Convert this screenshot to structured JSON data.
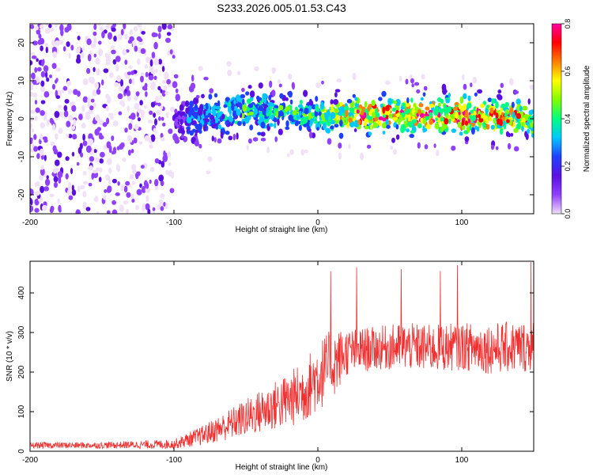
{
  "title": "S233.2026.005.01.53.C43",
  "colors": {
    "snr_line": "#f03030",
    "axis": "#000000"
  },
  "colormap": [
    "#f0e0f8",
    "#9040ff",
    "#5a10e0",
    "#2040ff",
    "#00c8ff",
    "#00ff80",
    "#80ff00",
    "#ffff00",
    "#ff8000",
    "#ff0000",
    "#ff00a0"
  ],
  "chart_data": [
    {
      "type": "heatmap",
      "name": "spectrogram",
      "xlabel": "Height of straight line (km)",
      "ylabel": "Frequency (Hz)",
      "xlim": [
        -200,
        150
      ],
      "ylim": [
        -25,
        25
      ],
      "xticks": [
        -200,
        -100,
        0,
        100
      ],
      "xtick_labels": [
        "-200",
        "-100",
        "0",
        "100"
      ],
      "yticks": [
        -20,
        -10,
        0,
        10,
        20
      ],
      "ytick_labels": [
        "-20",
        "-10",
        "0",
        "10",
        "20"
      ],
      "colorbar": {
        "label": "Normalized spectral amplitude",
        "range": [
          0,
          0.8
        ],
        "ticks": [
          0,
          0.2,
          0.4,
          0.6,
          0.8
        ],
        "tick_labels": [
          "0.0",
          "0.2",
          "0.4",
          "0.6",
          "0.8"
        ]
      },
      "description_points": [
        {
          "x": -200,
          "band_center": 0,
          "band_halfwidth": 25,
          "peak_amplitude": 0.12
        },
        {
          "x": -100,
          "band_center": 0,
          "band_halfwidth": 12,
          "peak_amplitude": 0.12
        },
        {
          "x": -90,
          "band_center": 0,
          "band_halfwidth": 8,
          "peak_amplitude": 0.25
        },
        {
          "x": -50,
          "band_center": 2,
          "band_halfwidth": 6,
          "peak_amplitude": 0.4
        },
        {
          "x": 0,
          "band_center": 1,
          "band_halfwidth": 5,
          "peak_amplitude": 0.45
        },
        {
          "x": 30,
          "band_center": 1,
          "band_halfwidth": 5,
          "peak_amplitude": 0.7
        },
        {
          "x": 100,
          "band_center": 1,
          "band_halfwidth": 5,
          "peak_amplitude": 0.75
        },
        {
          "x": 150,
          "band_center": 0,
          "band_halfwidth": 5,
          "peak_amplitude": 0.6
        }
      ]
    },
    {
      "type": "line",
      "name": "snr",
      "xlabel": "Height of straight line (km)",
      "ylabel": "SNR (10 * v/v)",
      "xlim": [
        -200,
        150
      ],
      "ylim": [
        0,
        480
      ],
      "xticks": [
        -200,
        -100,
        0,
        100
      ],
      "xtick_labels": [
        "-200",
        "-100",
        "0",
        "100"
      ],
      "yticks": [
        0,
        100,
        200,
        300,
        400
      ],
      "ytick_labels": [
        "0",
        "100",
        "200",
        "300",
        "400"
      ],
      "envelope": {
        "x": [
          -200,
          -150,
          -100,
          -80,
          -60,
          -40,
          -20,
          -10,
          0,
          10,
          20,
          40,
          60,
          80,
          100,
          120,
          150
        ],
        "mean": [
          15,
          15,
          18,
          40,
          70,
          100,
          130,
          150,
          190,
          220,
          250,
          260,
          265,
          260,
          265,
          260,
          265
        ],
        "spread": [
          8,
          8,
          12,
          25,
          40,
          55,
          70,
          80,
          90,
          90,
          60,
          55,
          60,
          60,
          60,
          65,
          65
        ]
      },
      "spikes": [
        {
          "x": 9,
          "y": 455
        },
        {
          "x": 27,
          "y": 465
        },
        {
          "x": 58,
          "y": 460
        },
        {
          "x": 85,
          "y": 455
        },
        {
          "x": 97,
          "y": 470
        },
        {
          "x": 148,
          "y": 478
        }
      ]
    }
  ]
}
